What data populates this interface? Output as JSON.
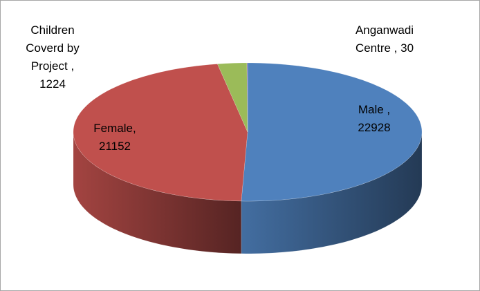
{
  "chart_data": {
    "type": "pie3d",
    "values": [
      22928,
      21152,
      1224,
      30
    ],
    "value_labels": [
      "Male , 22928",
      "Female, 21152",
      "Children Coverd by Project , 1224",
      "Anganwadi Centre , 30"
    ],
    "colors": [
      "#4f81bd",
      "#c0504d",
      "#9bbb59",
      "#8064a2"
    ]
  }
}
